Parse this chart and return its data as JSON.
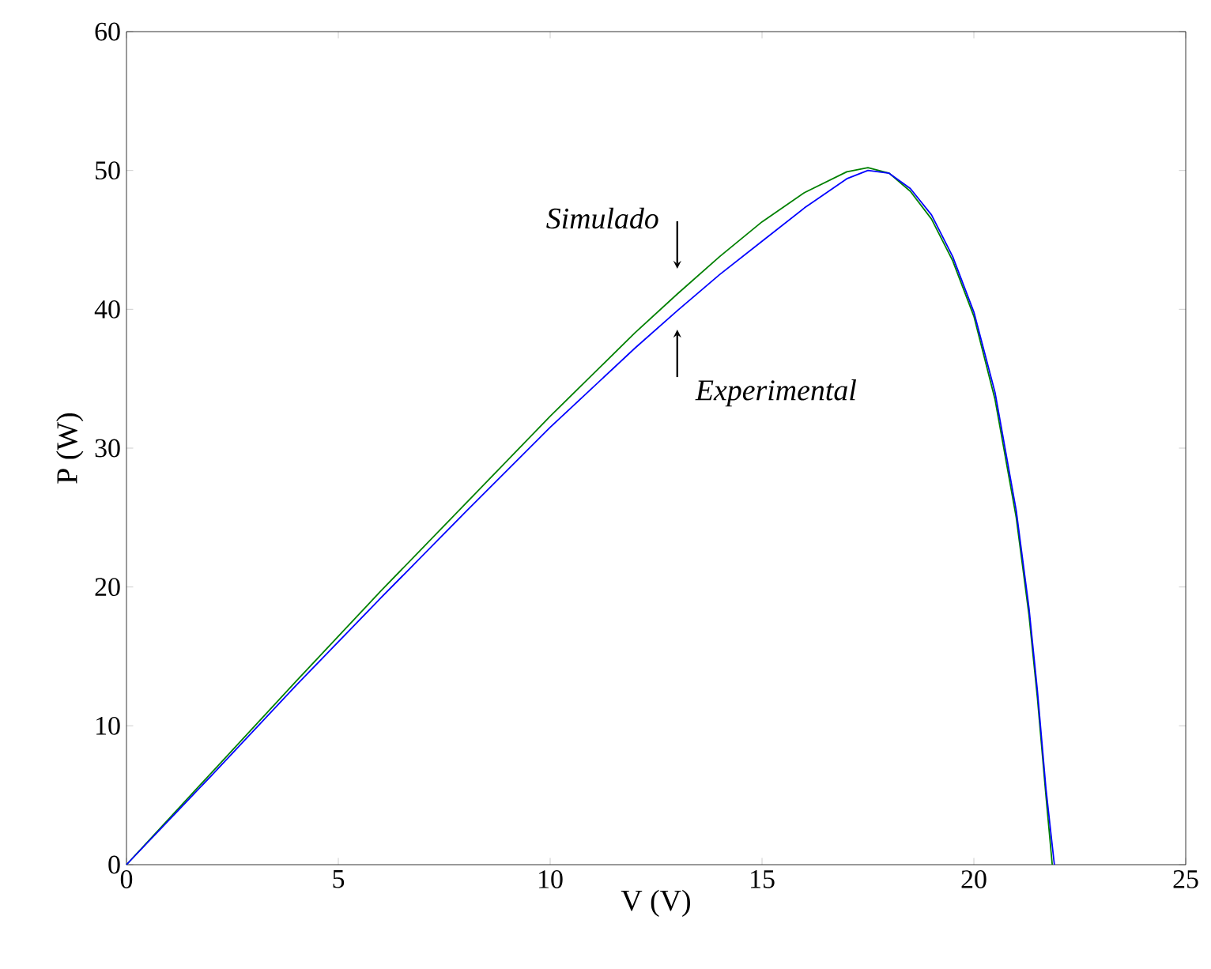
{
  "chart_data": {
    "type": "line",
    "xlabel": "V (V)",
    "ylabel": "P (W)",
    "xlim": [
      0,
      25
    ],
    "ylim": [
      0,
      60
    ],
    "xticks": [
      0,
      5,
      10,
      15,
      20,
      25
    ],
    "yticks": [
      0,
      10,
      20,
      30,
      40,
      50,
      60
    ],
    "series": [
      {
        "color": "#008000",
        "x": [
          0,
          2,
          4,
          6,
          8,
          10,
          12,
          13,
          14,
          15,
          16,
          17,
          17.5,
          18,
          18.5,
          19,
          19.5,
          20,
          20.5,
          21,
          21.3,
          21.5,
          21.7,
          21.85
        ],
        "values": [
          0,
          6.6,
          13.2,
          19.7,
          26,
          32.3,
          38.3,
          41.1,
          43.8,
          46.3,
          48.4,
          49.9,
          50.2,
          49.8,
          48.5,
          46.5,
          43.5,
          39.5,
          33.5,
          25,
          18,
          12,
          5,
          0
        ]
      },
      {
        "color": "#0000ff",
        "x": [
          0,
          2,
          4,
          6,
          8,
          10,
          12,
          13,
          14,
          15,
          16,
          17,
          17.5,
          18,
          18.5,
          19,
          19.5,
          20,
          20.5,
          21,
          21.3,
          21.5,
          21.7,
          21.9
        ],
        "values": [
          0,
          6.4,
          12.9,
          19.2,
          25.4,
          31.5,
          37.2,
          39.9,
          42.5,
          44.9,
          47.3,
          49.4,
          50,
          49.8,
          48.7,
          46.8,
          43.8,
          39.8,
          34,
          25.5,
          18.5,
          12.5,
          5.5,
          0
        ]
      }
    ],
    "annotations": [
      {
        "text": "Simulado",
        "x": 13,
        "y": 41.1
      },
      {
        "text": "Experimental",
        "x": 13,
        "y": 39.9
      }
    ]
  }
}
